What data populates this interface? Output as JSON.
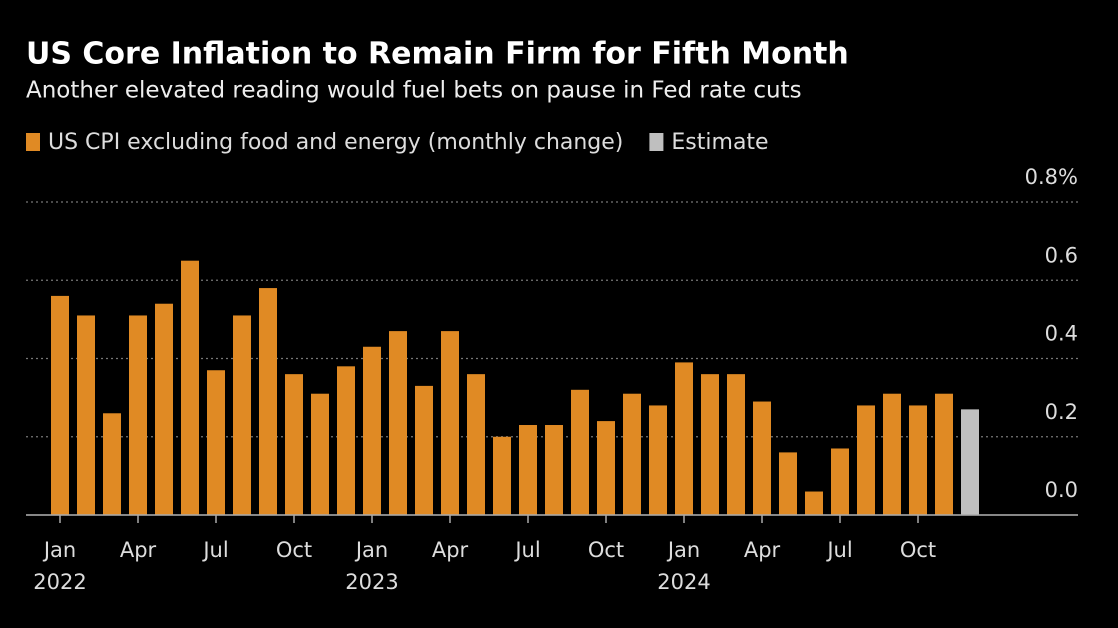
{
  "chart_data": {
    "type": "bar",
    "title": "US Core Inflation to Remain Firm for Fifth Month",
    "subtitle": "Another elevated reading would fuel bets on pause in Fed rate cuts",
    "categories": [
      "Jan 2022",
      null,
      null,
      "Apr",
      null,
      null,
      "Jul",
      null,
      null,
      "Oct",
      null,
      null,
      "Jan 2023",
      null,
      null,
      "Apr",
      null,
      null,
      "Jul",
      null,
      null,
      "Oct",
      null,
      null,
      "Jan 2024",
      null,
      null,
      "Apr",
      null,
      null,
      "Jul",
      null,
      null,
      "Oct",
      null,
      null
    ],
    "series": [
      {
        "name": "US CPI excluding food and energy (monthly change)",
        "color": "#e08a24",
        "values": [
          0.56,
          0.51,
          0.26,
          0.51,
          0.54,
          0.65,
          0.37,
          0.51,
          0.58,
          0.36,
          0.31,
          0.38,
          0.43,
          0.47,
          0.33,
          0.47,
          0.36,
          0.2,
          0.23,
          0.23,
          0.32,
          0.24,
          0.31,
          0.28,
          0.39,
          0.36,
          0.36,
          0.29,
          0.16,
          0.06,
          0.17,
          0.28,
          0.31,
          0.28,
          0.31,
          null
        ]
      },
      {
        "name": "Estimate",
        "color": "#bfbfbf",
        "values": [
          null,
          null,
          null,
          null,
          null,
          null,
          null,
          null,
          null,
          null,
          null,
          null,
          null,
          null,
          null,
          null,
          null,
          null,
          null,
          null,
          null,
          null,
          null,
          null,
          null,
          null,
          null,
          null,
          null,
          null,
          null,
          null,
          null,
          null,
          null,
          0.27
        ]
      }
    ],
    "ylim": [
      0,
      0.8
    ],
    "yticks": [
      {
        "value": 0,
        "label": "0.0"
      },
      0.2,
      0.4,
      0.6,
      {
        "value": 0.8,
        "label": "0.8%"
      }
    ],
    "grid": true
  }
}
